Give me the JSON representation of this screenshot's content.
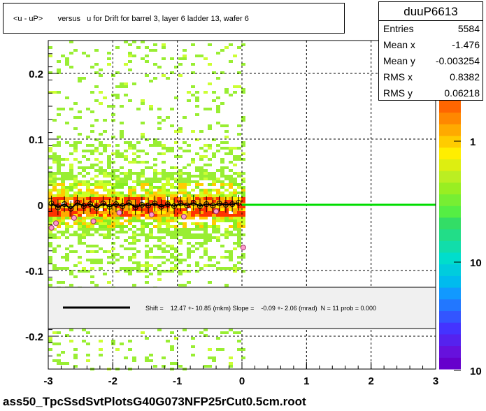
{
  "title": "<u - uP>       versus   u for Drift for barrel 3, layer 6 ladder 13, wafer 6",
  "stats": {
    "name": "duuP6613",
    "rows": [
      {
        "label": "Entries",
        "value": "5584"
      },
      {
        "label": "Mean x",
        "value": "-1.476"
      },
      {
        "label": "Mean y",
        "value": "-0.003254"
      },
      {
        "label": "RMS x",
        "value": "0.8382"
      },
      {
        "label": "RMS y",
        "value": "0.06218"
      }
    ]
  },
  "fit_text": "Shift =    12.47 +- 10.85 (mkm) Slope =    -0.09 +- 2.06 (mrad)  N = 11 prob = 0.000",
  "footer": "ass50_TpcSsdSvtPlotsG40G073NFP25rCut0.5cm.root",
  "colors": {
    "fit_line": "#00dd00",
    "profile": "#000000"
  },
  "chart_data": {
    "type": "heatmap",
    "xlim": [
      -3,
      3
    ],
    "ylim": [
      -0.25,
      0.25
    ],
    "x_ticks": [
      "-3",
      "-2",
      "-1",
      "0",
      "1",
      "2",
      "3"
    ],
    "y_ticks": [
      "0.2",
      "0.1",
      "0",
      "-0.1",
      "-0.2"
    ],
    "z_scale": "log",
    "z_ticks": [
      "1",
      "10",
      "10"
    ],
    "grid": true,
    "fit_line": {
      "x0": 0.0,
      "x1": 3.0,
      "y": 0.0
    },
    "profile_points": [
      {
        "x": -2.95,
        "y": 0.002
      },
      {
        "x": -2.85,
        "y": -0.004
      },
      {
        "x": -2.75,
        "y": 0.001
      },
      {
        "x": -2.65,
        "y": -0.006
      },
      {
        "x": -2.55,
        "y": 0.003
      },
      {
        "x": -2.45,
        "y": -0.002
      },
      {
        "x": -2.35,
        "y": 0.001
      },
      {
        "x": -2.25,
        "y": -0.005
      },
      {
        "x": -2.15,
        "y": 0.002
      },
      {
        "x": -2.05,
        "y": -0.003
      },
      {
        "x": -1.95,
        "y": 0.001
      },
      {
        "x": -1.85,
        "y": -0.002
      },
      {
        "x": -1.75,
        "y": 0.003
      },
      {
        "x": -1.65,
        "y": -0.004
      },
      {
        "x": -1.55,
        "y": 0.0
      },
      {
        "x": -1.45,
        "y": -0.001
      },
      {
        "x": -1.35,
        "y": 0.002
      },
      {
        "x": -1.25,
        "y": -0.003
      },
      {
        "x": -1.15,
        "y": 0.001
      },
      {
        "x": -1.05,
        "y": -0.002
      },
      {
        "x": -0.95,
        "y": 0.002
      },
      {
        "x": -0.85,
        "y": -0.001
      },
      {
        "x": -0.75,
        "y": 0.003
      },
      {
        "x": -0.65,
        "y": -0.002
      },
      {
        "x": -0.55,
        "y": 0.001
      },
      {
        "x": -0.45,
        "y": -0.001
      },
      {
        "x": -0.35,
        "y": 0.002
      },
      {
        "x": -0.25,
        "y": 0.0
      },
      {
        "x": -0.15,
        "y": 0.001
      },
      {
        "x": -0.05,
        "y": 0.003
      }
    ],
    "outlier_points": [
      {
        "x": -2.95,
        "y": -0.035
      },
      {
        "x": -2.88,
        "y": -0.028
      },
      {
        "x": -2.6,
        "y": -0.02
      },
      {
        "x": -2.3,
        "y": -0.025
      },
      {
        "x": -1.9,
        "y": -0.012
      },
      {
        "x": -1.4,
        "y": -0.015
      },
      {
        "x": -0.9,
        "y": -0.018
      },
      {
        "x": -0.4,
        "y": -0.01
      },
      {
        "x": 0.02,
        "y": -0.065
      }
    ]
  }
}
